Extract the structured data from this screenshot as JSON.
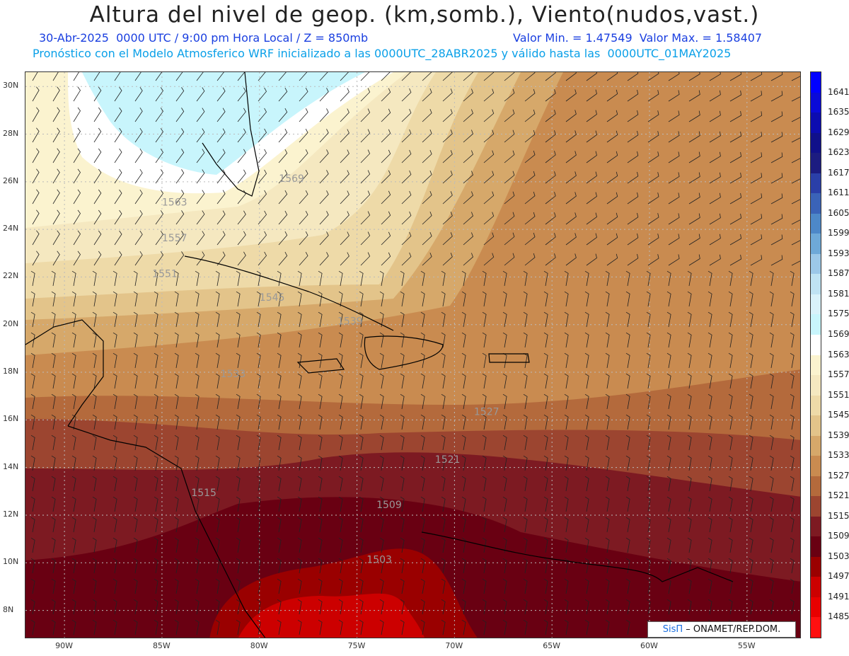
{
  "header": {
    "title": "Altura del nivel de geop. (km,somb.), Viento(nudos,vast.)",
    "subtitle_left": "30-Abr-2025  0000 UTC / 9:00 pm Hora Local / Z = 850mb",
    "subtitle_right": "Valor Min. = 1.47549  Valor Max. = 1.58407",
    "subtitle_2": "Pronóstico con el Modelo Atmosferico WRF inicializado a las 0000UTC_28ABR2025 y válido hasta las  0000UTC_01MAY2025"
  },
  "map": {
    "lat_range": [
      6.8,
      30.6
    ],
    "lon_range": [
      -92.0,
      -52.2
    ],
    "lat_ticks": [
      "30N",
      "28N",
      "26N",
      "24N",
      "22N",
      "20N",
      "18N",
      "16N",
      "14N",
      "12N",
      "10N",
      "8N"
    ],
    "lon_ticks": [
      "90W",
      "85W",
      "80W",
      "75W",
      "70W",
      "65W",
      "60W",
      "55W"
    ],
    "contour_labels": [
      "1569",
      "1563",
      "1557",
      "1551",
      "1545",
      "1539",
      "1533",
      "1527",
      "1521",
      "1515",
      "1509",
      "1503"
    ]
  },
  "colorbar": {
    "levels": [
      "1641",
      "1635",
      "1629",
      "1623",
      "1617",
      "1611",
      "1605",
      "1599",
      "1593",
      "1587",
      "1581",
      "1575",
      "1569",
      "1563",
      "1557",
      "1551",
      "1545",
      "1539",
      "1533",
      "1527",
      "1521",
      "1515",
      "1509",
      "1503",
      "1497",
      "1491",
      "1485"
    ],
    "colors": [
      "#0000ff",
      "#0a0ad8",
      "#0c0cb0",
      "#10108a",
      "#1c1c80",
      "#2a3fa8",
      "#3a63b8",
      "#4d88c8",
      "#6ea9d8",
      "#9cc8e8",
      "#bfe3f3",
      "#d9f2fa",
      "#c8f5fc",
      "#ffffff",
      "#fbf3cf",
      "#f5e8c0",
      "#eedaa8",
      "#e3c48a",
      "#d6a86a",
      "#c98b50",
      "#b46a3c",
      "#9c4530",
      "#7d1a22",
      "#690012",
      "#9a0000",
      "#cc0000",
      "#e80000",
      "#ff1010"
    ]
  },
  "credit": {
    "brand": "SisΠ",
    "text": " – ONAMET/REP.DOM."
  }
}
